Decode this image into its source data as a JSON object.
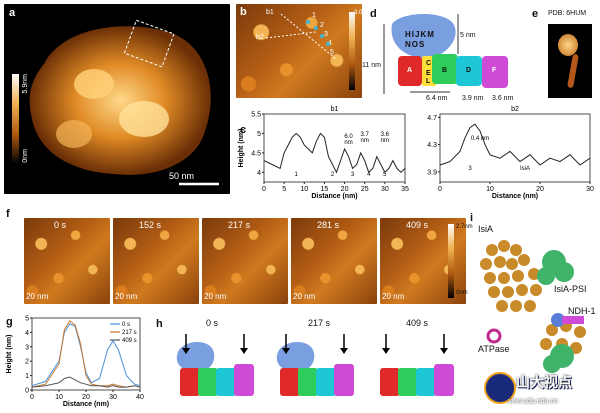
{
  "panels": {
    "a": {
      "label": "a",
      "scalebar": "50 nm",
      "colorbar_top": "5.9nm",
      "colorbar_bottom": "0nm"
    },
    "b": {
      "label": "b",
      "colorbar_top": "3.0nm",
      "colorbar_bottom": "0nm",
      "marks": [
        "b1",
        "b2",
        "1",
        "2",
        "3",
        "4",
        "5"
      ]
    },
    "c": {
      "label": "c"
    },
    "d": {
      "label": "d",
      "top_letters": "HIJKM",
      "mid_letters": "NOS",
      "dim_11": "11 nm",
      "dim_5": "5 nm",
      "dim_64": "6.4 nm",
      "dim_39": "3.9 nm",
      "dim_36": "3.6 nm",
      "subunits": [
        "A",
        "B",
        "C",
        "D",
        "F",
        "E",
        "L"
      ]
    },
    "e": {
      "label": "e",
      "pdb": "PDB: 6HUM"
    },
    "f": {
      "label": "f",
      "times": [
        "0 s",
        "152 s",
        "217 s",
        "281 s",
        "409 s"
      ],
      "scale": "20 nm",
      "colorbar_top": "2.7nm",
      "colorbar_bottom": "0nm"
    },
    "g": {
      "label": "g",
      "legend": [
        "0 s",
        "217 s",
        "409 s"
      ],
      "annot": "4.3 nm"
    },
    "h": {
      "label": "h",
      "times": [
        "0 s",
        "217 s",
        "409 s"
      ]
    },
    "i": {
      "label": "i",
      "isia": "IsiA",
      "isia_psi": "IsiA-PSI",
      "ndh": "NDH-1",
      "atpase": "ATPase"
    }
  },
  "watermark": {
    "text": "山大视点",
    "url": "view.sdu.edu.cn"
  },
  "chart_data": [
    {
      "type": "line",
      "title": "b1",
      "xlabel": "Distance (nm)",
      "ylabel": "Height (nm)",
      "xlim": [
        0,
        35
      ],
      "ylim": [
        3.75,
        5.5
      ],
      "xticks": [
        0,
        5,
        10,
        15,
        20,
        25,
        30,
        35
      ],
      "yticks": [
        4.0,
        4.5,
        5.0,
        5.5
      ],
      "series": [
        {
          "x": [
            0,
            2,
            4,
            5,
            6,
            7,
            8,
            9,
            10,
            11,
            12,
            13,
            14,
            15,
            16,
            17,
            18,
            19,
            20,
            21,
            22,
            23,
            24,
            25,
            26,
            27,
            28,
            29,
            30,
            31,
            32,
            33,
            34,
            35
          ],
          "y": [
            4.3,
            4.2,
            4.1,
            4.5,
            4.7,
            4.9,
            5.0,
            4.9,
            4.7,
            4.6,
            4.5,
            4.8,
            5.0,
            4.9,
            4.4,
            4.2,
            4.0,
            4.3,
            4.6,
            4.4,
            4.1,
            4.2,
            4.5,
            4.3,
            4.0,
            4.1,
            4.4,
            4.2,
            4.0,
            4.1,
            4.3,
            4.1,
            4.0,
            4.1
          ]
        }
      ],
      "annotations": [
        {
          "text": "1",
          "x": 8
        },
        {
          "text": "2",
          "x": 17
        },
        {
          "text": "3",
          "x": 22
        },
        {
          "text": "4",
          "x": 26
        },
        {
          "text": "5",
          "x": 30
        },
        {
          "text": "6.0",
          "x": 21
        },
        {
          "text": "nm",
          "x": 21
        },
        {
          "text": "3.7",
          "x": 25
        },
        {
          "text": "nm",
          "x": 25
        },
        {
          "text": "3.6",
          "x": 30
        },
        {
          "text": "nm",
          "x": 30
        }
      ]
    },
    {
      "type": "line",
      "title": "b2",
      "xlabel": "Distance (nm)",
      "ylabel": "",
      "xlim": [
        0,
        30
      ],
      "ylim": [
        3.75,
        4.75
      ],
      "xticks": [
        0,
        10,
        20,
        30
      ],
      "yticks": [
        3.9,
        4.3,
        4.7
      ],
      "series": [
        {
          "x": [
            0,
            2,
            4,
            5,
            6,
            7,
            8,
            9,
            10,
            12,
            14,
            16,
            18,
            20,
            22,
            24,
            26,
            28,
            30
          ],
          "y": [
            4.0,
            4.05,
            4.2,
            4.4,
            4.55,
            4.6,
            4.5,
            4.3,
            4.15,
            4.1,
            4.2,
            4.05,
            4.15,
            4.0,
            4.1,
            4.05,
            4.15,
            4.0,
            4.1
          ]
        }
      ],
      "annotations": [
        {
          "text": "0.4 nm",
          "x": 8
        },
        {
          "text": "3",
          "x": 6
        },
        {
          "text": "IsiA",
          "x": 17
        }
      ]
    },
    {
      "type": "line",
      "xlabel": "Distance (nm)",
      "ylabel": "Height (nm)",
      "xlim": [
        0,
        40
      ],
      "ylim": [
        0,
        5
      ],
      "xticks": [
        0,
        10,
        20,
        30,
        40
      ],
      "yticks": [
        0,
        1,
        2,
        3,
        4,
        5
      ],
      "series": [
        {
          "name": "0 s",
          "color": "#4a8fd8",
          "x": [
            0,
            5,
            10,
            12,
            14,
            16,
            18,
            20,
            22,
            25,
            28,
            30,
            32,
            35,
            38,
            40
          ],
          "y": [
            0.3,
            0.6,
            2.0,
            4.0,
            4.6,
            4.4,
            3.0,
            1.2,
            0.5,
            0.8,
            2.8,
            3.4,
            2.8,
            1.0,
            0.4,
            0.3
          ]
        },
        {
          "name": "217 s",
          "color": "#c9772a",
          "x": [
            0,
            5,
            10,
            12,
            14,
            16,
            18,
            20,
            22,
            25,
            28,
            30,
            32,
            35,
            38,
            40
          ],
          "y": [
            0.2,
            0.4,
            1.8,
            4.2,
            4.8,
            4.5,
            3.2,
            1.0,
            0.4,
            0.3,
            0.3,
            0.4,
            0.3,
            0.2,
            0.3,
            0.2
          ]
        },
        {
          "name": "409 s",
          "color": "#555555",
          "x": [
            0,
            5,
            10,
            12,
            14,
            16,
            18,
            20,
            22,
            25,
            28,
            30,
            32,
            35,
            38,
            40
          ],
          "y": [
            0.2,
            0.3,
            0.5,
            0.8,
            0.9,
            0.7,
            0.5,
            0.4,
            0.3,
            0.3,
            0.2,
            0.3,
            0.2,
            0.2,
            0.3,
            0.2
          ]
        }
      ]
    }
  ]
}
